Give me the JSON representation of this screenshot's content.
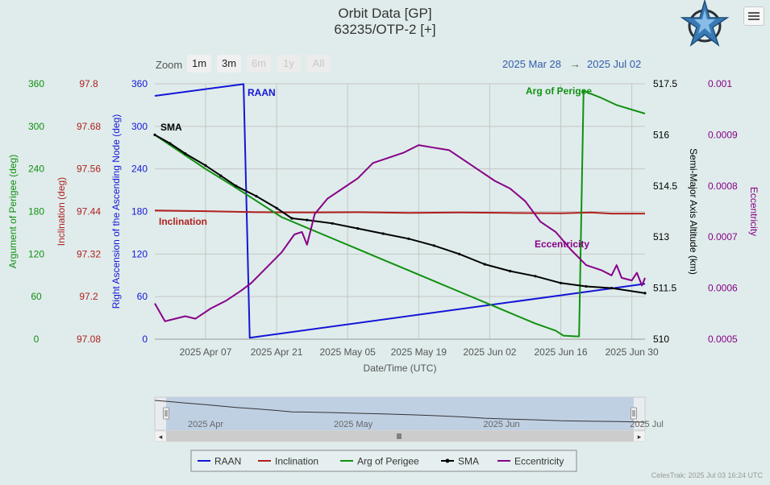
{
  "header": {
    "title": "Orbit Data [GP]",
    "subtitle": "63235/OTP-2 [+]"
  },
  "toolbar": {
    "zoom_label": "Zoom",
    "zoom_buttons": [
      "1m",
      "3m",
      "6m",
      "1y",
      "All"
    ],
    "zoom_enabled": [
      true,
      true,
      false,
      false,
      false
    ],
    "range_from": "2025 Mar 28",
    "range_arrow": "→",
    "range_to": "2025 Jul 02",
    "menu_icon": "hamburger-menu-icon"
  },
  "logo_icon": "celestrak-star-logo",
  "navigator": {
    "labels": [
      "2025 Apr",
      "2025 May",
      "2025 Jun",
      "2025 Jul"
    ]
  },
  "footer": "CelesTrak: 2025 Jul 03 16:24 UTC",
  "chart_data": {
    "type": "line",
    "title": "Orbit Data [GP]",
    "subtitle": "63235/OTP-2 [+]",
    "xlabel": "Date/Time (UTC)",
    "x_ticks": [
      "2025 Apr 07",
      "2025 Apr 21",
      "2025 May 05",
      "2025 May 19",
      "2025 Jun 02",
      "2025 Jun 16",
      "2025 Jun 30"
    ],
    "x_tick_days": [
      10,
      24,
      38,
      52,
      66,
      80,
      94
    ],
    "x_range_days": [
      0,
      96.6
    ],
    "x_origin": "2025 Mar 28",
    "grid": true,
    "legend_position": "bottom",
    "colors": {
      "raan": "#1515d6",
      "inclination": "#b0201e",
      "arg_perigee": "#119011",
      "sma": "#000000",
      "eccentricity": "#880088",
      "grid": "#c5c5c5"
    },
    "axes": [
      {
        "id": "argp",
        "label": "Argument of Perigee (deg)",
        "side": "left",
        "ticks": [
          "0",
          "60",
          "120",
          "180",
          "240",
          "300",
          "360"
        ],
        "range": [
          0,
          360
        ],
        "color": "#119011"
      },
      {
        "id": "inc",
        "label": "Inclination (deg)",
        "side": "left",
        "ticks": [
          "97.08",
          "97.2",
          "97.32",
          "97.44",
          "97.56",
          "97.68",
          "97.8"
        ],
        "range": [
          97.08,
          97.8
        ],
        "color": "#b0201e"
      },
      {
        "id": "raan",
        "label": "Right Ascension of the Ascending Node (deg)",
        "side": "left",
        "ticks": [
          "0",
          "60",
          "120",
          "180",
          "240",
          "300",
          "360"
        ],
        "range": [
          0,
          360
        ],
        "color": "#1515d6"
      },
      {
        "id": "sma",
        "label": "Semi-Major Axis Altitude (km)",
        "side": "right",
        "ticks": [
          "510",
          "511.5",
          "513",
          "514.5",
          "516",
          "517.5"
        ],
        "range": [
          510,
          517.5
        ],
        "color": "#000000"
      },
      {
        "id": "ecc",
        "label": "Eccentricity",
        "side": "right",
        "ticks": [
          "0.0005",
          "0.0006",
          "0.0007",
          "0.0008",
          "0.0009",
          "0.001"
        ],
        "range": [
          0.0005,
          0.001
        ],
        "color": "#880088"
      }
    ],
    "series": [
      {
        "name": "RAAN",
        "axis": "raan",
        "color": "#1515d6",
        "points": [
          [
            0,
            343
          ],
          [
            17.5,
            359.5
          ],
          [
            18.7,
            2
          ],
          [
            96.6,
            78
          ]
        ]
      },
      {
        "name": "Inclination",
        "axis": "inc",
        "color": "#b0201e",
        "points": [
          [
            0,
            97.443
          ],
          [
            10,
            97.441
          ],
          [
            20,
            97.438
          ],
          [
            30,
            97.437
          ],
          [
            40,
            97.438
          ],
          [
            50,
            97.436
          ],
          [
            60,
            97.437
          ],
          [
            70,
            97.436
          ],
          [
            80,
            97.435
          ],
          [
            86,
            97.437
          ],
          [
            90,
            97.434
          ],
          [
            96.6,
            97.434
          ]
        ]
      },
      {
        "name": "Arg of Perigee",
        "axis": "argp",
        "color": "#119011",
        "points": [
          [
            0,
            288
          ],
          [
            5,
            264
          ],
          [
            10,
            240
          ],
          [
            15,
            218
          ],
          [
            20,
            195
          ],
          [
            25,
            172
          ],
          [
            30,
            157
          ],
          [
            35,
            142
          ],
          [
            40,
            127
          ],
          [
            45,
            112
          ],
          [
            50,
            97
          ],
          [
            55,
            82
          ],
          [
            60,
            67
          ],
          [
            65,
            52
          ],
          [
            70,
            37
          ],
          [
            75,
            22
          ],
          [
            79,
            12
          ],
          [
            80.5,
            5
          ],
          [
            83,
            4
          ],
          [
            83.6,
            4
          ],
          [
            84.5,
            350
          ],
          [
            88,
            340
          ],
          [
            91,
            330
          ],
          [
            96.6,
            318
          ]
        ]
      },
      {
        "name": "SMA",
        "axis": "sma",
        "color": "#000000",
        "points": [
          [
            0,
            516.0
          ],
          [
            3,
            515.75
          ],
          [
            6,
            515.45
          ],
          [
            10,
            515.1
          ],
          [
            13,
            514.8
          ],
          [
            16,
            514.5
          ],
          [
            20,
            514.2
          ],
          [
            24,
            513.85
          ],
          [
            27,
            513.55
          ],
          [
            30,
            513.5
          ],
          [
            35,
            513.4
          ],
          [
            40,
            513.25
          ],
          [
            45,
            513.1
          ],
          [
            50,
            512.95
          ],
          [
            55,
            512.75
          ],
          [
            60,
            512.5
          ],
          [
            65,
            512.2
          ],
          [
            70,
            512.0
          ],
          [
            75,
            511.85
          ],
          [
            80,
            511.65
          ],
          [
            85,
            511.55
          ],
          [
            90,
            511.5
          ],
          [
            96.6,
            511.35
          ]
        ]
      },
      {
        "name": "Eccentricity",
        "axis": "ecc",
        "color": "#880088",
        "points": [
          [
            0,
            0.00057
          ],
          [
            2,
            0.000535
          ],
          [
            4,
            0.00054
          ],
          [
            6,
            0.000545
          ],
          [
            8,
            0.00054
          ],
          [
            11,
            0.00056
          ],
          [
            14,
            0.000575
          ],
          [
            17,
            0.000595
          ],
          [
            19,
            0.00061
          ],
          [
            22,
            0.00064
          ],
          [
            25,
            0.00067
          ],
          [
            27.5,
            0.000705
          ],
          [
            29,
            0.00071
          ],
          [
            30,
            0.000685
          ],
          [
            31.5,
            0.000745
          ],
          [
            34,
            0.000775
          ],
          [
            37,
            0.000795
          ],
          [
            40,
            0.000815
          ],
          [
            43,
            0.000845
          ],
          [
            46,
            0.000855
          ],
          [
            49,
            0.000865
          ],
          [
            52,
            0.00088
          ],
          [
            55,
            0.000875
          ],
          [
            58,
            0.00087
          ],
          [
            61,
            0.00085
          ],
          [
            64,
            0.00083
          ],
          [
            67,
            0.00081
          ],
          [
            70,
            0.000795
          ],
          [
            73,
            0.00077
          ],
          [
            76,
            0.00073
          ],
          [
            79,
            0.00071
          ],
          [
            82,
            0.000675
          ],
          [
            85,
            0.000645
          ],
          [
            88,
            0.000635
          ],
          [
            90,
            0.000625
          ],
          [
            91,
            0.000645
          ],
          [
            92,
            0.00062
          ],
          [
            94,
            0.000615
          ],
          [
            95,
            0.00063
          ],
          [
            96,
            0.000605
          ],
          [
            96.6,
            0.00062
          ]
        ]
      }
    ],
    "annotations": [
      {
        "text": "RAAN",
        "color": "#1515d6"
      },
      {
        "text": "SMA",
        "color": "#000000"
      },
      {
        "text": "Inclination",
        "color": "#b0201e"
      },
      {
        "text": "Arg of Perigee",
        "color": "#119011"
      },
      {
        "text": "Eccentricity",
        "color": "#880088"
      }
    ],
    "legend": [
      "RAAN",
      "Inclination",
      "Arg of Perigee",
      "SMA",
      "Eccentricity"
    ]
  }
}
